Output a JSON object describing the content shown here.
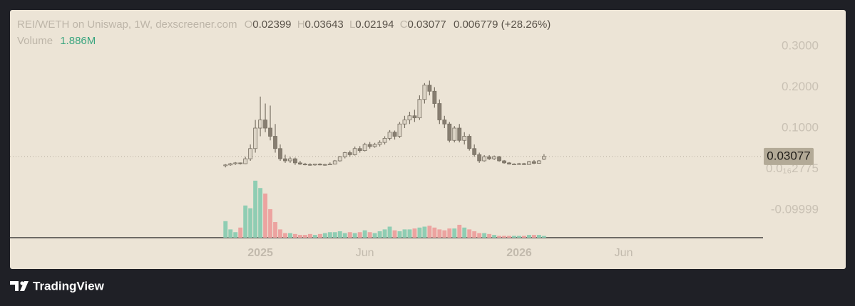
{
  "chart_data": {
    "type": "candlestick",
    "legend": {
      "symbol": "REI/WETH on Uniswap, 1W, dexscreener.com",
      "o": "O",
      "open": "0.02399",
      "h": "H",
      "high": "0.03643",
      "l": "L",
      "low": "0.02194",
      "c": "C",
      "close": "0.03077",
      "change": "0.006779 (+28.26%)",
      "volume_name": "Volume",
      "volume_value": "1.886M"
    },
    "open": [
      0.008,
      0.01,
      0.013,
      0.015,
      0.013,
      0.025,
      0.05,
      0.1,
      0.12,
      0.1,
      0.08,
      0.05,
      0.025,
      0.02,
      0.025,
      0.015,
      0.012,
      0.011,
      0.01,
      0.012,
      0.01,
      0.011,
      0.012,
      0.02,
      0.03,
      0.04,
      0.035,
      0.05,
      0.045,
      0.06,
      0.055,
      0.06,
      0.065,
      0.075,
      0.09,
      0.08,
      0.11,
      0.12,
      0.13,
      0.125,
      0.17,
      0.205,
      0.19,
      0.16,
      0.12,
      0.11,
      0.07,
      0.1,
      0.07,
      0.08,
      0.05,
      0.035,
      0.02,
      0.03,
      0.025,
      0.03,
      0.02,
      0.015,
      0.012,
      0.012,
      0.013,
      0.011,
      0.018,
      0.014,
      0.02399
    ],
    "high": [
      0.012,
      0.015,
      0.017,
      0.016,
      0.03,
      0.06,
      0.12,
      0.177,
      0.16,
      0.155,
      0.11,
      0.06,
      0.035,
      0.03,
      0.028,
      0.02,
      0.015,
      0.014,
      0.013,
      0.014,
      0.013,
      0.016,
      0.022,
      0.032,
      0.042,
      0.045,
      0.055,
      0.056,
      0.064,
      0.066,
      0.064,
      0.07,
      0.08,
      0.095,
      0.094,
      0.115,
      0.13,
      0.14,
      0.145,
      0.18,
      0.21,
      0.216,
      0.2,
      0.17,
      0.13,
      0.115,
      0.105,
      0.11,
      0.09,
      0.085,
      0.06,
      0.04,
      0.034,
      0.034,
      0.033,
      0.032,
      0.022,
      0.017,
      0.014,
      0.015,
      0.015,
      0.02,
      0.022,
      0.022,
      0.03643
    ],
    "low": [
      0.004,
      0.008,
      0.01,
      0.011,
      0.012,
      0.02,
      0.04,
      0.08,
      0.09,
      0.07,
      0.04,
      0.02,
      0.015,
      0.015,
      0.01,
      0.01,
      0.009,
      0.008,
      0.008,
      0.009,
      0.008,
      0.01,
      0.011,
      0.018,
      0.026,
      0.03,
      0.033,
      0.04,
      0.043,
      0.05,
      0.052,
      0.055,
      0.06,
      0.07,
      0.072,
      0.076,
      0.1,
      0.11,
      0.115,
      0.12,
      0.16,
      0.18,
      0.15,
      0.11,
      0.1,
      0.065,
      0.065,
      0.065,
      0.06,
      0.045,
      0.03,
      0.015,
      0.018,
      0.022,
      0.022,
      0.018,
      0.013,
      0.011,
      0.01,
      0.01,
      0.01,
      0.01,
      0.012,
      0.013,
      0.02194
    ],
    "close": [
      0.01,
      0.013,
      0.015,
      0.013,
      0.025,
      0.05,
      0.1,
      0.12,
      0.1,
      0.08,
      0.05,
      0.025,
      0.02,
      0.025,
      0.015,
      0.012,
      0.011,
      0.01,
      0.012,
      0.01,
      0.011,
      0.012,
      0.02,
      0.03,
      0.04,
      0.035,
      0.05,
      0.045,
      0.06,
      0.055,
      0.06,
      0.065,
      0.075,
      0.09,
      0.08,
      0.11,
      0.12,
      0.13,
      0.125,
      0.17,
      0.205,
      0.19,
      0.16,
      0.12,
      0.11,
      0.07,
      0.1,
      0.07,
      0.08,
      0.05,
      0.035,
      0.02,
      0.03,
      0.025,
      0.03,
      0.02,
      0.015,
      0.012,
      0.012,
      0.013,
      0.011,
      0.018,
      0.014,
      0.02,
      0.03077
    ],
    "volumes": [
      18,
      9,
      6,
      11,
      35,
      32,
      62,
      54,
      48,
      31,
      17,
      9,
      5,
      5,
      4,
      3,
      3,
      4,
      3,
      4,
      5,
      6,
      6,
      7,
      5,
      6,
      5,
      6,
      8,
      6,
      5,
      7,
      9,
      12,
      8,
      7,
      9,
      9,
      10,
      11,
      12,
      13,
      11,
      9,
      8,
      10,
      10,
      14,
      11,
      9,
      7,
      5,
      5,
      4,
      3,
      2,
      2,
      2,
      2,
      2,
      2,
      3,
      3,
      3,
      1.886
    ],
    "last_price": 0.03077,
    "up_color": "#ddd5c7",
    "down_color": "#877e71",
    "volume_up_color": "#8fcdb3",
    "volume_down_color": "#eca3a0",
    "xlim": [
      -43.3,
      108
    ],
    "xticks": [
      {
        "value": 7,
        "label": "2025"
      },
      {
        "value": 28,
        "label": "Jun"
      },
      {
        "value": 59,
        "label": "2026"
      },
      {
        "value": 80,
        "label": "Jun"
      }
    ],
    "ylim": [
      -0.1678,
      0.3887
    ],
    "yticks": [
      {
        "value": 0.3,
        "label": "0.3000"
      },
      {
        "value": 0.2,
        "label": "0.2000"
      },
      {
        "value": 0.1,
        "label": "0.1000"
      },
      {
        "value": 2.775e-17,
        "label": "0.0₁₆2775"
      },
      {
        "value": -0.09999,
        "label": "-0.09999"
      }
    ],
    "volume_ylim": [
      0,
      65
    ],
    "footer": "TradingView"
  }
}
